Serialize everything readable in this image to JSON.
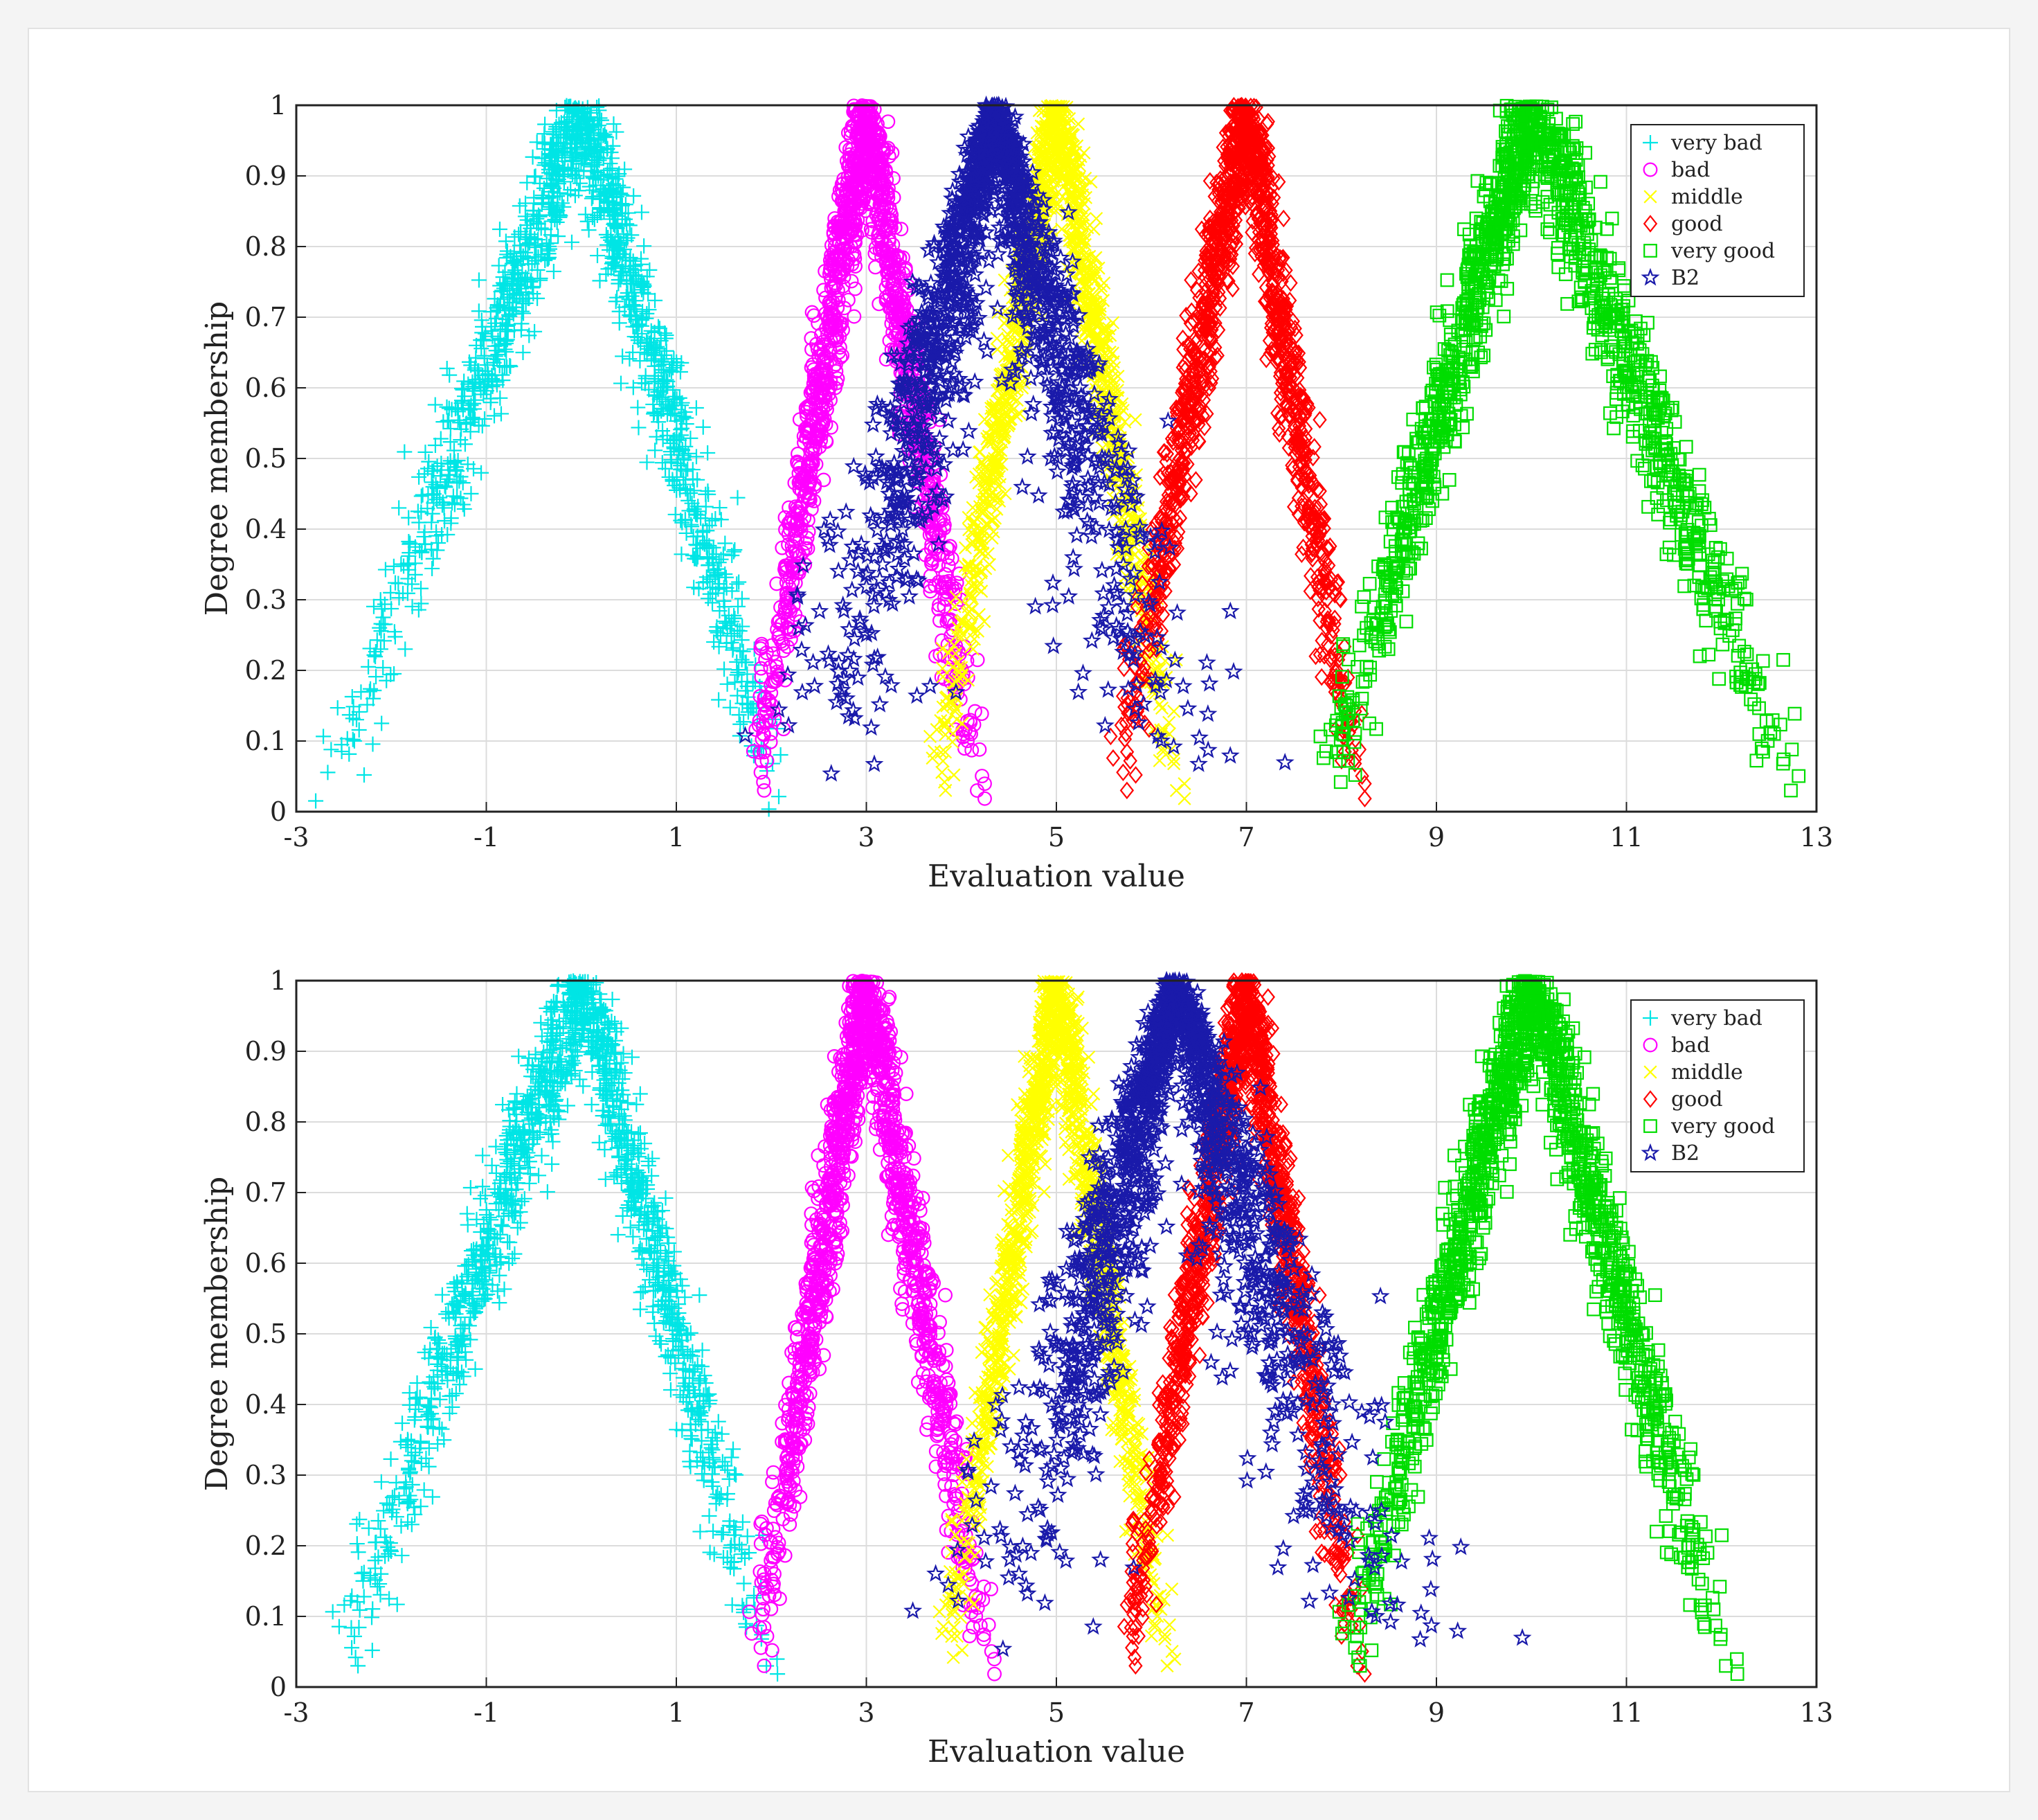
{
  "chart_data": [
    {
      "type": "scatter",
      "xlabel": "Evaluation value",
      "ylabel": "Degree membership",
      "xlim": [
        -3,
        13
      ],
      "ylim": [
        0,
        1
      ],
      "xticks": [
        "-3",
        "-1",
        "1",
        "3",
        "5",
        "7",
        "9",
        "11",
        "13"
      ],
      "yticks": [
        "0",
        "0.1",
        "0.2",
        "0.3",
        "0.4",
        "0.5",
        "0.6",
        "0.7",
        "0.8",
        "0.9",
        "1"
      ],
      "grid": true,
      "legend_position": "top-right",
      "series": [
        {
          "name": "very bad",
          "marker": "plus",
          "color": "#00e5e5",
          "peak": [
            0,
            1
          ],
          "support": [
            -2.7,
            2.1
          ]
        },
        {
          "name": "bad",
          "marker": "circle",
          "color": "#ff00ff",
          "peak": [
            3,
            1
          ],
          "support": [
            1.8,
            4.2
          ]
        },
        {
          "name": "middle",
          "marker": "x",
          "color": "#ffff00",
          "peak": [
            5,
            1
          ],
          "support": [
            3.7,
            6.3
          ]
        },
        {
          "name": "good",
          "marker": "diamond",
          "color": "#ff0000",
          "peak": [
            7,
            1
          ],
          "support": [
            5.6,
            8.2
          ]
        },
        {
          "name": "very good",
          "marker": "square",
          "color": "#00dd00",
          "peak": [
            10,
            1
          ],
          "support": [
            7.8,
            12.8
          ]
        },
        {
          "name": "B2",
          "marker": "star",
          "color": "#1a1aaa",
          "peak": [
            4.35,
            1
          ],
          "support": [
            2.5,
            6.3
          ]
        }
      ]
    },
    {
      "type": "scatter",
      "xlabel": "Evaluation value",
      "ylabel": "Degree membership",
      "xlim": [
        -3,
        13
      ],
      "ylim": [
        0,
        1
      ],
      "xticks": [
        "-3",
        "-1",
        "1",
        "3",
        "5",
        "7",
        "9",
        "11",
        "13"
      ],
      "yticks": [
        "0",
        "0.1",
        "0.2",
        "0.3",
        "0.4",
        "0.5",
        "0.6",
        "0.7",
        "0.8",
        "0.9",
        "1"
      ],
      "grid": true,
      "legend_position": "top-right",
      "series": [
        {
          "name": "very bad",
          "marker": "plus",
          "color": "#00e5e5",
          "peak": [
            0,
            1
          ],
          "support": [
            -2.6,
            2.0
          ]
        },
        {
          "name": "bad",
          "marker": "circle",
          "color": "#ff00ff",
          "peak": [
            3,
            1
          ],
          "support": [
            1.8,
            4.3
          ]
        },
        {
          "name": "middle",
          "marker": "x",
          "color": "#ffff00",
          "peak": [
            5,
            1
          ],
          "support": [
            3.8,
            6.2
          ]
        },
        {
          "name": "good",
          "marker": "diamond",
          "color": "#ff0000",
          "peak": [
            7,
            1
          ],
          "support": [
            5.7,
            8.2
          ]
        },
        {
          "name": "very good",
          "marker": "square",
          "color": "#00dd00",
          "peak": [
            10,
            1
          ],
          "support": [
            8.0,
            12.1
          ]
        },
        {
          "name": "B2",
          "marker": "star",
          "color": "#1a1aaa",
          "peak": [
            6.25,
            1
          ],
          "support": [
            4.3,
            8.6
          ]
        }
      ]
    }
  ]
}
